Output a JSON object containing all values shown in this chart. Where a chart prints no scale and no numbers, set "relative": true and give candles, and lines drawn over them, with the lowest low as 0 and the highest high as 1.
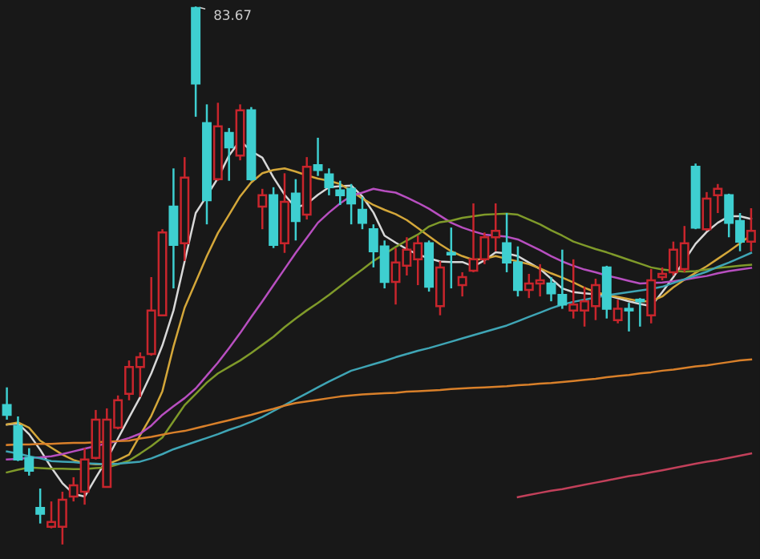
{
  "chart_data": {
    "type": "candlestick",
    "relative": true,
    "categories": [
      null,
      null,
      null,
      null,
      null,
      null,
      null,
      null,
      null,
      null,
      null,
      null,
      null,
      null,
      null,
      null,
      null,
      null,
      null,
      null,
      null,
      null,
      null,
      null,
      null,
      null,
      null,
      null,
      null,
      null,
      null,
      null,
      null,
      null,
      null,
      null,
      null,
      null,
      null,
      null,
      null,
      null,
      null,
      null,
      null,
      null,
      null,
      null,
      null,
      null,
      null,
      null,
      null,
      null,
      null,
      null,
      null,
      null,
      null,
      null,
      null,
      null,
      null,
      null,
      null,
      null,
      null,
      null
    ],
    "ohlc": [
      [
        0.259,
        0.292,
        0.232,
        0.241
      ],
      [
        0.22,
        0.238,
        0.155,
        0.158
      ],
      [
        0.161,
        0.179,
        0.128,
        0.137
      ],
      [
        0.068,
        0.104,
        0.039,
        0.057
      ],
      [
        0.033,
        0.08,
        0.03,
        0.042
      ],
      [
        0.033,
        0.098,
        0.0,
        0.083
      ],
      [
        0.089,
        0.125,
        0.08,
        0.11
      ],
      [
        0.098,
        0.179,
        0.074,
        0.158
      ],
      [
        0.161,
        0.25,
        0.158,
        0.232
      ],
      [
        0.107,
        0.253,
        0.107,
        0.232
      ],
      [
        0.217,
        0.277,
        0.214,
        0.268
      ],
      [
        0.28,
        0.342,
        0.268,
        0.33
      ],
      [
        0.33,
        0.357,
        0.274,
        0.348
      ],
      [
        0.354,
        0.497,
        0.351,
        0.435
      ],
      [
        0.426,
        0.586,
        0.426,
        0.58
      ],
      [
        0.628,
        0.699,
        0.476,
        0.557
      ],
      [
        0.56,
        0.72,
        0.527,
        0.682
      ],
      [
        0.997,
        1.0,
        0.795,
        0.857
      ],
      [
        0.783,
        0.818,
        0.595,
        0.64
      ],
      [
        0.679,
        0.821,
        0.676,
        0.777
      ],
      [
        0.765,
        0.774,
        0.676,
        0.738
      ],
      [
        0.723,
        0.818,
        0.714,
        0.807
      ],
      [
        0.807,
        0.813,
        0.676,
        0.679
      ],
      [
        0.628,
        0.661,
        0.586,
        0.649
      ],
      [
        0.649,
        0.664,
        0.551,
        0.557
      ],
      [
        0.56,
        0.69,
        0.542,
        0.637
      ],
      [
        0.652,
        0.679,
        0.565,
        0.601
      ],
      [
        0.613,
        0.72,
        0.604,
        0.702
      ],
      [
        0.705,
        0.756,
        0.685,
        0.696
      ],
      [
        0.688,
        0.699,
        0.649,
        0.664
      ],
      [
        0.658,
        0.676,
        0.631,
        0.649
      ],
      [
        0.661,
        0.67,
        0.595,
        0.634
      ],
      [
        0.622,
        0.646,
        0.586,
        0.598
      ],
      [
        0.586,
        0.595,
        0.515,
        0.545
      ],
      [
        0.554,
        0.565,
        0.476,
        0.488
      ],
      [
        0.488,
        0.551,
        0.446,
        0.524
      ],
      [
        0.518,
        0.571,
        0.5,
        0.548
      ],
      [
        0.53,
        0.574,
        0.482,
        0.56
      ],
      [
        0.56,
        0.565,
        0.47,
        0.479
      ],
      [
        0.443,
        0.527,
        0.426,
        0.515
      ],
      [
        0.542,
        0.589,
        0.476,
        0.539
      ],
      [
        0.482,
        0.506,
        0.461,
        0.497
      ],
      [
        0.509,
        0.634,
        0.506,
        0.53
      ],
      [
        0.53,
        0.58,
        0.521,
        0.571
      ],
      [
        0.571,
        0.634,
        0.545,
        0.583
      ],
      [
        0.56,
        0.616,
        0.506,
        0.524
      ],
      [
        0.524,
        0.554,
        0.461,
        0.473
      ],
      [
        0.473,
        0.503,
        0.458,
        0.485
      ],
      [
        0.485,
        0.521,
        0.461,
        0.491
      ],
      [
        0.485,
        0.497,
        0.452,
        0.467
      ],
      [
        0.464,
        0.548,
        0.438,
        0.446
      ],
      [
        0.435,
        0.53,
        0.42,
        0.446
      ],
      [
        0.435,
        0.479,
        0.405,
        0.452
      ],
      [
        0.443,
        0.494,
        0.417,
        0.482
      ],
      [
        0.515,
        0.518,
        0.42,
        0.438
      ],
      [
        0.417,
        0.455,
        0.411,
        0.438
      ],
      [
        0.438,
        0.449,
        0.396,
        0.435
      ],
      [
        0.455,
        0.458,
        0.405,
        0.452
      ],
      [
        0.426,
        0.512,
        0.411,
        0.491
      ],
      [
        0.497,
        0.515,
        0.491,
        0.503
      ],
      [
        0.506,
        0.563,
        0.5,
        0.548
      ],
      [
        0.512,
        0.592,
        0.506,
        0.56
      ],
      [
        0.702,
        0.708,
        0.586,
        0.589
      ],
      [
        0.586,
        0.655,
        0.583,
        0.643
      ],
      [
        0.649,
        0.67,
        0.616,
        0.661
      ],
      [
        0.649,
        0.652,
        0.571,
        0.598
      ],
      [
        0.601,
        0.616,
        0.545,
        0.563
      ],
      [
        0.563,
        0.625,
        0.545,
        0.583
      ]
    ],
    "colors": [
      "#3ecfd0",
      "#3ecfd0",
      "#3ecfd0",
      "#3ecfd0",
      "#c8252c",
      "#c8252c",
      "#c8252c",
      "#c8252c",
      "#c8252c",
      "#c8252c",
      "#c8252c",
      "#c8252c",
      "#c8252c",
      "#c8252c",
      "#c8252c",
      "#3ecfd0",
      "#c8252c",
      "#3ecfd0",
      "#3ecfd0",
      "#c8252c",
      "#3ecfd0",
      "#c8252c",
      "#3ecfd0",
      "#c8252c",
      "#3ecfd0",
      "#c8252c",
      "#3ecfd0",
      "#c8252c",
      "#3ecfd0",
      "#3ecfd0",
      "#3ecfd0",
      "#3ecfd0",
      "#3ecfd0",
      "#3ecfd0",
      "#3ecfd0",
      "#c8252c",
      "#c8252c",
      "#c8252c",
      "#3ecfd0",
      "#c8252c",
      "#3ecfd0",
      "#c8252c",
      "#c8252c",
      "#c8252c",
      "#c8252c",
      "#3ecfd0",
      "#3ecfd0",
      "#c8252c",
      "#c8252c",
      "#3ecfd0",
      "#3ecfd0",
      "#c8252c",
      "#c8252c",
      "#c8252c",
      "#3ecfd0",
      "#c8252c",
      "#3ecfd0",
      "#3ecfd0",
      "#c8252c",
      "#c8252c",
      "#c8252c",
      "#c8252c",
      "#3ecfd0",
      "#c8252c",
      "#c8252c",
      "#3ecfd0",
      "#3ecfd0",
      "#c8252c"
    ],
    "annotations": [
      "83.67"
    ],
    "series": [
      {
        "type": "line",
        "color": "#d8d8d8",
        "values": [
          0.223,
          0.225,
          0.205,
          0.176,
          0.143,
          0.114,
          0.094,
          0.089,
          0.124,
          0.158,
          0.197,
          0.236,
          0.274,
          0.318,
          0.37,
          0.435,
          0.526,
          0.616,
          0.648,
          0.681,
          0.723,
          0.751,
          0.731,
          0.719,
          0.682,
          0.65,
          0.626,
          0.633,
          0.65,
          0.664,
          0.666,
          0.667,
          0.647,
          0.617,
          0.574,
          0.561,
          0.549,
          0.539,
          0.532,
          0.526,
          0.525,
          0.525,
          0.517,
          0.528,
          0.543,
          0.541,
          0.536,
          0.524,
          0.512,
          0.494,
          0.476,
          0.469,
          0.467,
          0.465,
          0.463,
          0.458,
          0.452,
          0.447,
          0.443,
          0.469,
          0.497,
          0.528,
          0.559,
          0.581,
          0.598,
          0.61,
          0.61,
          0.605
        ]
      },
      {
        "type": "line",
        "color": "#d4a73a",
        "values": [
          0.223,
          0.227,
          0.217,
          0.193,
          0.18,
          0.167,
          0.157,
          0.151,
          0.149,
          0.149,
          0.157,
          0.167,
          0.203,
          0.239,
          0.285,
          0.368,
          0.44,
          0.488,
          0.536,
          0.579,
          0.613,
          0.647,
          0.673,
          0.69,
          0.696,
          0.699,
          0.693,
          0.686,
          0.68,
          0.676,
          0.67,
          0.657,
          0.643,
          0.631,
          0.622,
          0.614,
          0.603,
          0.588,
          0.573,
          0.558,
          0.545,
          0.536,
          0.529,
          0.531,
          0.536,
          0.531,
          0.526,
          0.521,
          0.513,
          0.504,
          0.496,
          0.487,
          0.477,
          0.469,
          0.464,
          0.46,
          0.456,
          0.452,
          0.452,
          0.461,
          0.478,
          0.492,
          0.505,
          0.517,
          0.531,
          0.545,
          0.56,
          0.575
        ]
      },
      {
        "type": "line",
        "color": "#b84fc0",
        "values": [
          0.158,
          0.159,
          0.161,
          0.162,
          0.164,
          0.168,
          0.173,
          0.178,
          0.183,
          0.188,
          0.192,
          0.198,
          0.206,
          0.221,
          0.241,
          0.257,
          0.272,
          0.29,
          0.314,
          0.338,
          0.365,
          0.393,
          0.423,
          0.452,
          0.482,
          0.512,
          0.542,
          0.57,
          0.598,
          0.617,
          0.634,
          0.648,
          0.654,
          0.661,
          0.657,
          0.654,
          0.645,
          0.635,
          0.624,
          0.611,
          0.598,
          0.589,
          0.582,
          0.576,
          0.574,
          0.572,
          0.567,
          0.557,
          0.547,
          0.536,
          0.526,
          0.518,
          0.511,
          0.506,
          0.5,
          0.495,
          0.49,
          0.485,
          0.486,
          0.487,
          0.489,
          0.492,
          0.496,
          0.499,
          0.504,
          0.508,
          0.511,
          0.514
        ]
      },
      {
        "type": "line",
        "color": "#7f9a2a",
        "values": [
          0.134,
          0.139,
          0.143,
          0.142,
          0.141,
          0.141,
          0.14,
          0.14,
          0.142,
          0.143,
          0.149,
          0.156,
          0.169,
          0.183,
          0.199,
          0.229,
          0.259,
          0.28,
          0.301,
          0.318,
          0.33,
          0.342,
          0.356,
          0.371,
          0.386,
          0.404,
          0.42,
          0.435,
          0.449,
          0.464,
          0.48,
          0.496,
          0.511,
          0.527,
          0.54,
          0.553,
          0.565,
          0.576,
          0.591,
          0.599,
          0.602,
          0.607,
          0.61,
          0.613,
          0.614,
          0.615,
          0.613,
          0.604,
          0.595,
          0.584,
          0.574,
          0.563,
          0.556,
          0.549,
          0.543,
          0.536,
          0.529,
          0.522,
          0.515,
          0.511,
          0.509,
          0.507,
          0.508,
          0.511,
          0.514,
          0.516,
          0.518,
          0.52
        ]
      },
      {
        "type": "line",
        "color": "#3fa5b5",
        "values": [
          0.173,
          0.169,
          0.164,
          0.16,
          0.155,
          0.154,
          0.153,
          0.151,
          0.15,
          0.149,
          0.15,
          0.152,
          0.154,
          0.16,
          0.168,
          0.177,
          0.184,
          0.191,
          0.198,
          0.205,
          0.213,
          0.22,
          0.228,
          0.237,
          0.248,
          0.259,
          0.27,
          0.281,
          0.292,
          0.303,
          0.313,
          0.323,
          0.329,
          0.335,
          0.341,
          0.348,
          0.354,
          0.36,
          0.365,
          0.371,
          0.377,
          0.383,
          0.389,
          0.395,
          0.401,
          0.407,
          0.415,
          0.423,
          0.431,
          0.439,
          0.446,
          0.451,
          0.455,
          0.459,
          0.463,
          0.466,
          0.469,
          0.472,
          0.475,
          0.479,
          0.486,
          0.493,
          0.5,
          0.507,
          0.516,
          0.524,
          0.533,
          0.542
        ]
      },
      {
        "type": "line",
        "color": "#d9802a",
        "values": [
          0.185,
          0.186,
          0.186,
          0.187,
          0.187,
          0.188,
          0.189,
          0.189,
          0.19,
          0.191,
          0.192,
          0.193,
          0.197,
          0.2,
          0.204,
          0.208,
          0.211,
          0.216,
          0.221,
          0.226,
          0.231,
          0.236,
          0.241,
          0.247,
          0.252,
          0.258,
          0.263,
          0.266,
          0.269,
          0.272,
          0.275,
          0.277,
          0.279,
          0.28,
          0.281,
          0.282,
          0.284,
          0.285,
          0.286,
          0.287,
          0.289,
          0.29,
          0.291,
          0.292,
          0.293,
          0.294,
          0.296,
          0.297,
          0.299,
          0.3,
          0.302,
          0.304,
          0.306,
          0.308,
          0.311,
          0.313,
          0.315,
          0.318,
          0.32,
          0.323,
          0.325,
          0.328,
          0.331,
          0.333,
          0.336,
          0.339,
          0.342,
          0.344
        ]
      },
      {
        "type": "line",
        "color": "#c2405a",
        "values": [
          null,
          null,
          null,
          null,
          null,
          null,
          null,
          null,
          null,
          null,
          null,
          null,
          null,
          null,
          null,
          null,
          null,
          null,
          null,
          null,
          null,
          null,
          null,
          null,
          null,
          null,
          null,
          null,
          null,
          null,
          null,
          null,
          null,
          null,
          null,
          null,
          null,
          null,
          null,
          null,
          null,
          null,
          null,
          null,
          null,
          null,
          0.088,
          0.092,
          0.096,
          0.1,
          0.103,
          0.107,
          0.111,
          0.115,
          0.119,
          0.123,
          0.127,
          0.13,
          0.134,
          0.138,
          0.142,
          0.146,
          0.15,
          0.154,
          0.157,
          0.161,
          0.165,
          0.169
        ]
      }
    ]
  }
}
